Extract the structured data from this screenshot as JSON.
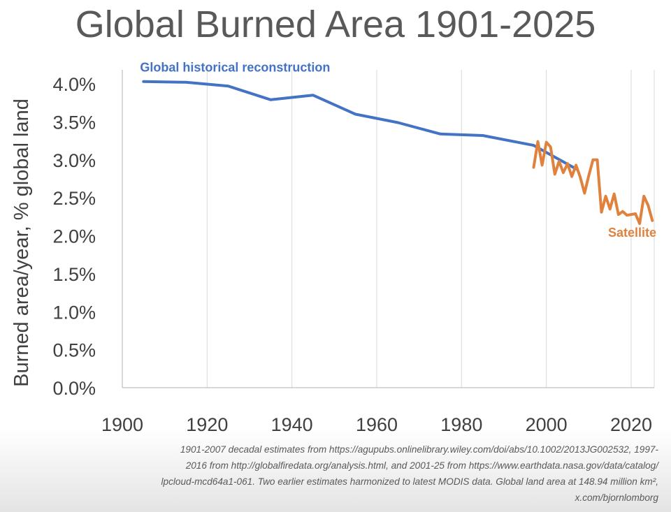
{
  "title": "Global Burned Area 1901-2025",
  "footnote_lines": [
    "1901-2007 decadal estimates from https://agupubs.onlinelibrary.wiley.com/doi/abs/10.1002/2013JG002532, 1997-",
    "2016 from http://globalfiredata.org/analysis.html, and 2001-25 from https://www.earthdata.nasa.gov/data/catalog/",
    "lpcloud-mcd64a1-061. Two earlier estimates harmonized to latest MODIS data. Global land area at 148.94 million km²,",
    "x.com/bjornlomborg"
  ],
  "chart_data": {
    "type": "line",
    "title": "Global Burned Area 1901-2025",
    "xlabel": "",
    "ylabel": "Burned area/year, % global land",
    "xlim": [
      1900,
      2026
    ],
    "ylim": [
      0,
      4.0
    ],
    "x_ticks": [
      1900,
      1920,
      1940,
      1960,
      1980,
      2000,
      2020
    ],
    "x_tick_labels": [
      "1900",
      "1920",
      "1940",
      "1960",
      "1980",
      "2000",
      "2020"
    ],
    "y_ticks": [
      0,
      0.5,
      1.0,
      1.5,
      2.0,
      2.5,
      3.0,
      3.5,
      4.0
    ],
    "y_tick_labels": [
      "0.0%",
      "0.5%",
      "1.0%",
      "1.5%",
      "2.0%",
      "2.5%",
      "3.0%",
      "3.5%",
      "4.0%"
    ],
    "grid": "vertical",
    "series": [
      {
        "name": "Global historical reconstruction",
        "color": "#4472C4",
        "label_anchor": "start",
        "x": [
          1905,
          1915,
          1925,
          1935,
          1945,
          1955,
          1965,
          1975,
          1985,
          1997,
          2007
        ],
        "values": [
          4.03,
          4.02,
          3.97,
          3.79,
          3.85,
          3.6,
          3.49,
          3.34,
          3.32,
          3.19,
          2.88
        ]
      },
      {
        "name": "Satellite",
        "color": "#E0823D",
        "label_anchor": "end",
        "x": [
          1997,
          1998,
          1999,
          2000,
          2001,
          2002,
          2003,
          2004,
          2005,
          2006,
          2007,
          2008,
          2009,
          2010,
          2011,
          2012,
          2013,
          2014,
          2015,
          2016,
          2017,
          2018,
          2019,
          2020,
          2021,
          2022,
          2023,
          2024,
          2025
        ],
        "values": [
          2.9,
          3.24,
          2.93,
          3.23,
          3.17,
          2.81,
          2.98,
          2.83,
          2.95,
          2.78,
          2.93,
          2.77,
          2.56,
          2.79,
          3.0,
          3.0,
          2.31,
          2.52,
          2.35,
          2.55,
          2.28,
          2.32,
          2.27,
          2.28,
          2.29,
          2.16,
          2.52,
          2.4,
          2.2
        ]
      }
    ]
  }
}
